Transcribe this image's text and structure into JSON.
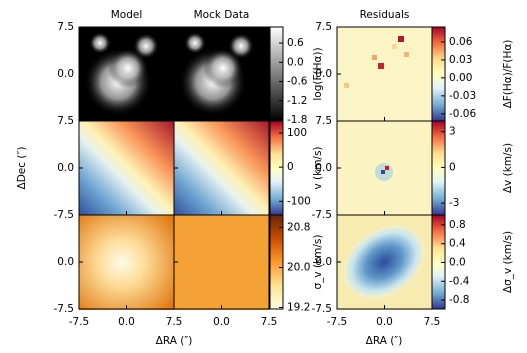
{
  "chart_data": {
    "type": "heatmap-grid",
    "column_titles": [
      "Model",
      "Mock Data",
      "Residuals"
    ],
    "xlabel": "ΔRA (″)",
    "ylabel": "ΔDec (″)",
    "xlim": [
      -7.5,
      7.5
    ],
    "ylim": [
      -7.5,
      7.5
    ],
    "xticks": [
      -7.5,
      {
        "value": 0,
        "label": "0.0"
      },
      7.5
    ],
    "yticks": [
      -7.5,
      {
        "value": 0,
        "label": "0.0"
      },
      7.5
    ],
    "rows": [
      {
        "colorbar": {
          "label": "log(F(Hα))",
          "cmap": "gray",
          "lim": [
            -1.83,
            1.1
          ],
          "ticks": [
            0.6,
            {
              "value": 0,
              "label": "0.0"
            },
            -0.6,
            -1.2,
            -1.8
          ]
        },
        "residual_colorbar": {
          "label": "ΔF(Hα)/F(Hα)",
          "cmap": "RdYlBu_r",
          "lim": [
            -0.072,
            0.085
          ],
          "ticks": [
            0.06,
            0.03,
            {
              "value": 0,
              "label": "0.00"
            },
            -0.03,
            -0.06
          ]
        }
      },
      {
        "colorbar": {
          "label": "v (km/s)",
          "cmap": "RdYlBu_r",
          "lim": [
            -140,
            135
          ],
          "ticks": [
            100,
            0,
            -100
          ]
        },
        "residual_colorbar": {
          "label": "Δv (km/s)",
          "cmap": "RdYlBu_r",
          "lim": [
            -4,
            3.9
          ],
          "ticks": [
            3,
            0,
            -3
          ]
        }
      },
      {
        "colorbar": {
          "label": "σ_v (km/s)",
          "cmap": "YlOrBr",
          "lim": [
            19.17,
            21.05
          ],
          "ticks": [
            20.8,
            {
              "value": 20,
              "label": "20.0"
            },
            19.2
          ]
        },
        "residual_colorbar": {
          "label": "Δσ_v (km/s)",
          "cmap": "RdYlBu_r",
          "lim": [
            -0.99,
            1.01
          ],
          "ticks": [
            0.8,
            0.4,
            {
              "value": 0,
              "label": "0.0"
            },
            -0.4,
            -0.8
          ]
        }
      }
    ]
  }
}
